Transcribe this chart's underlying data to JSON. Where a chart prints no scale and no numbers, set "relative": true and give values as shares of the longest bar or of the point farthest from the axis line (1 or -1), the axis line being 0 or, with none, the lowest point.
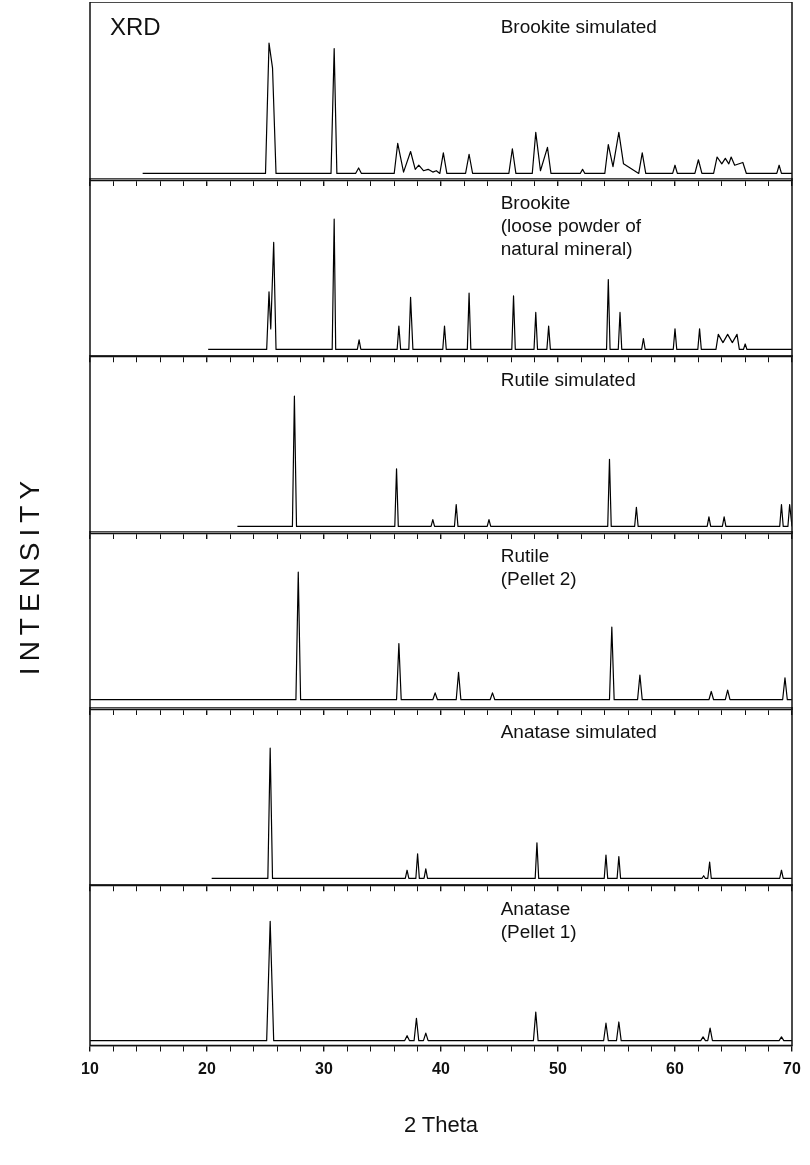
{
  "chart_data": [
    {
      "type": "line",
      "relative": true,
      "tick_labels": false,
      "xlim": [
        10,
        70
      ],
      "xticks": [
        10,
        {
          "value": 12,
          "label": null
        },
        {
          "value": 14,
          "label": null
        },
        {
          "value": 16,
          "label": null
        },
        {
          "value": 18,
          "label": null
        },
        20,
        {
          "value": 22,
          "label": null
        },
        {
          "value": 24,
          "label": null
        },
        {
          "value": 26,
          "label": null
        },
        {
          "value": 28,
          "label": null
        },
        30,
        {
          "value": 32,
          "label": null
        },
        {
          "value": 34,
          "label": null
        },
        {
          "value": 36,
          "label": null
        },
        {
          "value": 38,
          "label": null
        },
        40,
        {
          "value": 42,
          "label": null
        },
        {
          "value": 44,
          "label": null
        },
        {
          "value": 46,
          "label": null
        },
        {
          "value": 48,
          "label": null
        },
        50,
        {
          "value": 52,
          "label": null
        },
        {
          "value": 54,
          "label": null
        },
        {
          "value": 56,
          "label": null
        },
        {
          "value": 58,
          "label": null
        },
        60,
        {
          "value": 62,
          "label": null
        },
        {
          "value": 64,
          "label": null
        },
        {
          "value": 66,
          "label": null
        },
        {
          "value": 68,
          "label": null
        },
        70
      ],
      "annotations": [
        "XRD",
        "Brookite simulated"
      ],
      "series": [
        {
          "color": "#000000",
          "x": [
            14.5,
            25.0,
            25.3,
            25.6,
            25.9,
            30.6,
            30.87,
            31.1,
            32.7,
            32.96,
            33.2,
            36.0,
            36.3,
            36.8,
            37.4,
            37.8,
            38.1,
            38.5,
            38.9,
            39.3,
            39.6,
            39.9,
            40.2,
            40.5,
            42.1,
            42.4,
            42.7,
            45.8,
            46.1,
            46.4,
            47.8,
            48.1,
            48.5,
            49.1,
            49.4,
            51.9,
            52.1,
            52.3,
            54.0,
            54.3,
            54.7,
            55.2,
            55.6,
            56.9,
            57.2,
            57.5,
            59.8,
            60.0,
            60.2,
            61.7,
            62.0,
            62.3,
            63.3,
            63.6,
            64.0,
            64.3,
            64.6,
            64.8,
            65.1,
            65.8,
            66.1,
            68.7,
            68.9,
            69.1,
            70
          ],
          "values": [
            0.05,
            0.05,
            1,
            0.82,
            0.05,
            0.05,
            0.96,
            0.05,
            0.05,
            0.09,
            0.05,
            0.05,
            0.27,
            0.06,
            0.21,
            0.08,
            0.11,
            0.07,
            0.08,
            0.06,
            0.07,
            0.05,
            0.2,
            0.05,
            0.05,
            0.19,
            0.05,
            0.05,
            0.23,
            0.05,
            0.05,
            0.35,
            0.07,
            0.24,
            0.05,
            0.05,
            0.08,
            0.05,
            0.05,
            0.26,
            0.1,
            0.35,
            0.12,
            0.05,
            0.2,
            0.05,
            0.05,
            0.11,
            0.05,
            0.05,
            0.15,
            0.05,
            0.05,
            0.17,
            0.12,
            0.16,
            0.12,
            0.17,
            0.11,
            0.13,
            0.05,
            0.05,
            0.11,
            0.05,
            0.05
          ]
        }
      ]
    },
    {
      "type": "line",
      "relative": true,
      "tick_labels": false,
      "xlim": [
        10,
        70
      ],
      "xticks": [
        10,
        {
          "value": 12,
          "label": null
        },
        {
          "value": 14,
          "label": null
        },
        {
          "value": 16,
          "label": null
        },
        {
          "value": 18,
          "label": null
        },
        20,
        {
          "value": 22,
          "label": null
        },
        {
          "value": 24,
          "label": null
        },
        {
          "value": 26,
          "label": null
        },
        {
          "value": 28,
          "label": null
        },
        30,
        {
          "value": 32,
          "label": null
        },
        {
          "value": 34,
          "label": null
        },
        {
          "value": 36,
          "label": null
        },
        {
          "value": 38,
          "label": null
        },
        40,
        {
          "value": 42,
          "label": null
        },
        {
          "value": 44,
          "label": null
        },
        {
          "value": 46,
          "label": null
        },
        {
          "value": 48,
          "label": null
        },
        50,
        {
          "value": 52,
          "label": null
        },
        {
          "value": 54,
          "label": null
        },
        {
          "value": 56,
          "label": null
        },
        {
          "value": 58,
          "label": null
        },
        60,
        {
          "value": 62,
          "label": null
        },
        {
          "value": 64,
          "label": null
        },
        {
          "value": 66,
          "label": null
        },
        {
          "value": 68,
          "label": null
        },
        70
      ],
      "annotations": [
        "Brookite\n(loose powder of\nnatural mineral)"
      ],
      "series": [
        {
          "color": "#000000",
          "x": [
            20.1,
            25.1,
            25.3,
            25.45,
            25.7,
            25.9,
            30.7,
            30.87,
            31.0,
            32.85,
            33.0,
            33.15,
            36.25,
            36.4,
            36.55,
            37.25,
            37.4,
            37.6,
            40.15,
            40.3,
            40.45,
            42.25,
            42.4,
            42.55,
            46.05,
            46.2,
            46.35,
            47.95,
            48.1,
            48.25,
            49.05,
            49.2,
            49.35,
            54.15,
            54.3,
            54.45,
            55.15,
            55.3,
            55.45,
            57.15,
            57.3,
            57.45,
            59.85,
            60.0,
            60.15,
            61.95,
            62.1,
            62.25,
            63.5,
            63.7,
            64.1,
            64.5,
            64.9,
            65.3,
            65.5,
            65.85,
            66.0,
            66.15,
            70
          ],
          "values": [
            0.05,
            0.05,
            0.47,
            0.2,
            0.83,
            0.05,
            0.05,
            1,
            0.05,
            0.05,
            0.12,
            0.05,
            0.05,
            0.22,
            0.05,
            0.05,
            0.43,
            0.05,
            0.05,
            0.22,
            0.05,
            0.05,
            0.46,
            0.05,
            0.05,
            0.44,
            0.05,
            0.05,
            0.32,
            0.05,
            0.05,
            0.22,
            0.05,
            0.05,
            0.56,
            0.05,
            0.05,
            0.32,
            0.05,
            0.05,
            0.13,
            0.05,
            0.05,
            0.2,
            0.05,
            0.05,
            0.2,
            0.05,
            0.05,
            0.16,
            0.1,
            0.16,
            0.1,
            0.16,
            0.05,
            0.05,
            0.09,
            0.05,
            0.05
          ]
        }
      ]
    },
    {
      "type": "line",
      "relative": true,
      "tick_labels": false,
      "xlim": [
        10,
        70
      ],
      "xticks": [
        10,
        {
          "value": 12,
          "label": null
        },
        {
          "value": 14,
          "label": null
        },
        {
          "value": 16,
          "label": null
        },
        {
          "value": 18,
          "label": null
        },
        20,
        {
          "value": 22,
          "label": null
        },
        {
          "value": 24,
          "label": null
        },
        {
          "value": 26,
          "label": null
        },
        {
          "value": 28,
          "label": null
        },
        30,
        {
          "value": 32,
          "label": null
        },
        {
          "value": 34,
          "label": null
        },
        {
          "value": 36,
          "label": null
        },
        {
          "value": 38,
          "label": null
        },
        40,
        {
          "value": 42,
          "label": null
        },
        {
          "value": 44,
          "label": null
        },
        {
          "value": 46,
          "label": null
        },
        {
          "value": 48,
          "label": null
        },
        50,
        {
          "value": 52,
          "label": null
        },
        {
          "value": 54,
          "label": null
        },
        {
          "value": 56,
          "label": null
        },
        {
          "value": 58,
          "label": null
        },
        60,
        {
          "value": 62,
          "label": null
        },
        {
          "value": 64,
          "label": null
        },
        {
          "value": 66,
          "label": null
        },
        {
          "value": 68,
          "label": null
        },
        70
      ],
      "annotations": [
        "Rutile simulated"
      ],
      "series": [
        {
          "color": "#000000",
          "x": [
            22.6,
            27.3,
            27.47,
            27.65,
            36.05,
            36.2,
            36.35,
            39.15,
            39.3,
            39.45,
            41.15,
            41.3,
            41.45,
            43.95,
            44.1,
            44.25,
            54.25,
            54.4,
            54.55,
            56.55,
            56.7,
            56.85,
            62.75,
            62.9,
            63.05,
            64.05,
            64.2,
            64.35,
            68.95,
            69.1,
            69.25,
            69.65,
            69.8,
            70
          ],
          "values": [
            0.05,
            0.05,
            1,
            0.05,
            0.05,
            0.47,
            0.05,
            0.05,
            0.1,
            0.05,
            0.05,
            0.21,
            0.05,
            0.05,
            0.1,
            0.05,
            0.05,
            0.54,
            0.05,
            0.05,
            0.19,
            0.05,
            0.05,
            0.12,
            0.05,
            0.05,
            0.12,
            0.05,
            0.05,
            0.21,
            0.05,
            0.05,
            0.21,
            0.05
          ]
        }
      ]
    },
    {
      "type": "line",
      "relative": true,
      "tick_labels": false,
      "xlim": [
        10,
        70
      ],
      "xticks": [
        10,
        {
          "value": 12,
          "label": null
        },
        {
          "value": 14,
          "label": null
        },
        {
          "value": 16,
          "label": null
        },
        {
          "value": 18,
          "label": null
        },
        20,
        {
          "value": 22,
          "label": null
        },
        {
          "value": 24,
          "label": null
        },
        {
          "value": 26,
          "label": null
        },
        {
          "value": 28,
          "label": null
        },
        30,
        {
          "value": 32,
          "label": null
        },
        {
          "value": 34,
          "label": null
        },
        {
          "value": 36,
          "label": null
        },
        {
          "value": 38,
          "label": null
        },
        40,
        {
          "value": 42,
          "label": null
        },
        {
          "value": 44,
          "label": null
        },
        {
          "value": 46,
          "label": null
        },
        {
          "value": 48,
          "label": null
        },
        50,
        {
          "value": 52,
          "label": null
        },
        {
          "value": 54,
          "label": null
        },
        {
          "value": 56,
          "label": null
        },
        {
          "value": 58,
          "label": null
        },
        60,
        {
          "value": 62,
          "label": null
        },
        {
          "value": 64,
          "label": null
        },
        {
          "value": 66,
          "label": null
        },
        {
          "value": 68,
          "label": null
        },
        70
      ],
      "annotations": [
        "Rutile\n(Pellet 2)"
      ],
      "ylabel": "INTENSITY",
      "series": [
        {
          "color": "#000000",
          "x": [
            10,
            27.6,
            27.8,
            28.0,
            36.2,
            36.4,
            36.6,
            39.3,
            39.5,
            39.7,
            41.3,
            41.5,
            41.7,
            44.2,
            44.4,
            44.6,
            54.4,
            54.6,
            54.8,
            56.8,
            57.0,
            57.2,
            62.9,
            63.1,
            63.3,
            64.3,
            64.5,
            64.7,
            69.2,
            69.4,
            69.6,
            70
          ],
          "values": [
            0.07,
            0.07,
            1,
            0.07,
            0.07,
            0.48,
            0.07,
            0.07,
            0.12,
            0.07,
            0.07,
            0.27,
            0.07,
            0.07,
            0.12,
            0.07,
            0.07,
            0.6,
            0.07,
            0.07,
            0.25,
            0.07,
            0.07,
            0.13,
            0.07,
            0.07,
            0.14,
            0.07,
            0.07,
            0.23,
            0.07,
            0.07
          ]
        }
      ]
    },
    {
      "type": "line",
      "relative": true,
      "tick_labels": false,
      "xlim": [
        10,
        70
      ],
      "xticks": [
        10,
        {
          "value": 12,
          "label": null
        },
        {
          "value": 14,
          "label": null
        },
        {
          "value": 16,
          "label": null
        },
        {
          "value": 18,
          "label": null
        },
        20,
        {
          "value": 22,
          "label": null
        },
        {
          "value": 24,
          "label": null
        },
        {
          "value": 26,
          "label": null
        },
        {
          "value": 28,
          "label": null
        },
        30,
        {
          "value": 32,
          "label": null
        },
        {
          "value": 34,
          "label": null
        },
        {
          "value": 36,
          "label": null
        },
        {
          "value": 38,
          "label": null
        },
        40,
        {
          "value": 42,
          "label": null
        },
        {
          "value": 44,
          "label": null
        },
        {
          "value": 46,
          "label": null
        },
        {
          "value": 48,
          "label": null
        },
        50,
        {
          "value": 52,
          "label": null
        },
        {
          "value": 54,
          "label": null
        },
        {
          "value": 56,
          "label": null
        },
        {
          "value": 58,
          "label": null
        },
        60,
        {
          "value": 62,
          "label": null
        },
        {
          "value": 64,
          "label": null
        },
        {
          "value": 66,
          "label": null
        },
        {
          "value": 68,
          "label": null
        },
        70
      ],
      "annotations": [
        "Anatase simulated"
      ],
      "series": [
        {
          "color": "#000000",
          "x": [
            20.4,
            25.2,
            25.4,
            25.6,
            36.95,
            37.1,
            37.25,
            37.85,
            38.0,
            38.15,
            38.55,
            38.7,
            38.85,
            48.05,
            48.2,
            48.35,
            53.95,
            54.1,
            54.25,
            55.05,
            55.2,
            55.35,
            62.3,
            62.45,
            62.6,
            62.8,
            62.96,
            63.1,
            68.95,
            69.1,
            69.25,
            70
          ],
          "values": [
            0.05,
            0.05,
            1,
            0.05,
            0.05,
            0.11,
            0.05,
            0.05,
            0.23,
            0.05,
            0.05,
            0.12,
            0.05,
            0.05,
            0.31,
            0.05,
            0.05,
            0.22,
            0.05,
            0.05,
            0.21,
            0.05,
            0.05,
            0.07,
            0.05,
            0.05,
            0.17,
            0.05,
            0.05,
            0.11,
            0.05,
            0.05
          ]
        }
      ]
    },
    {
      "type": "line",
      "relative": true,
      "tick_labels": "x",
      "xlabel": "2 Theta",
      "xlim": [
        10,
        70
      ],
      "xticks": [
        10,
        {
          "value": 12,
          "label": null
        },
        {
          "value": 14,
          "label": null
        },
        {
          "value": 16,
          "label": null
        },
        {
          "value": 18,
          "label": null
        },
        20,
        {
          "value": 22,
          "label": null
        },
        {
          "value": 24,
          "label": null
        },
        {
          "value": 26,
          "label": null
        },
        {
          "value": 28,
          "label": null
        },
        30,
        {
          "value": 32,
          "label": null
        },
        {
          "value": 34,
          "label": null
        },
        {
          "value": 36,
          "label": null
        },
        {
          "value": 38,
          "label": null
        },
        40,
        {
          "value": 42,
          "label": null
        },
        {
          "value": 44,
          "label": null
        },
        {
          "value": 46,
          "label": null
        },
        {
          "value": 48,
          "label": null
        },
        50,
        {
          "value": 52,
          "label": null
        },
        {
          "value": 54,
          "label": null
        },
        {
          "value": 56,
          "label": null
        },
        {
          "value": 58,
          "label": null
        },
        60,
        {
          "value": 62,
          "label": null
        },
        {
          "value": 64,
          "label": null
        },
        {
          "value": 66,
          "label": null
        },
        {
          "value": 68,
          "label": null
        },
        70
      ],
      "annotations": [
        "Anatase\n(Pellet 1)"
      ],
      "series": [
        {
          "color": "#000000",
          "x": [
            10,
            25.1,
            25.4,
            25.7,
            36.9,
            37.1,
            37.3,
            37.7,
            37.9,
            38.1,
            38.5,
            38.7,
            38.9,
            47.9,
            48.1,
            48.3,
            53.9,
            54.1,
            54.3,
            55.0,
            55.2,
            55.4,
            62.2,
            62.4,
            62.6,
            62.8,
            63.0,
            63.2,
            68.9,
            69.1,
            69.3,
            70
          ],
          "values": [
            0.04,
            0.04,
            1,
            0.04,
            0.04,
            0.08,
            0.04,
            0.04,
            0.22,
            0.04,
            0.04,
            0.1,
            0.04,
            0.04,
            0.27,
            0.04,
            0.04,
            0.18,
            0.04,
            0.04,
            0.19,
            0.04,
            0.04,
            0.07,
            0.04,
            0.04,
            0.14,
            0.04,
            0.04,
            0.07,
            0.04,
            0.04
          ]
        }
      ]
    }
  ]
}
